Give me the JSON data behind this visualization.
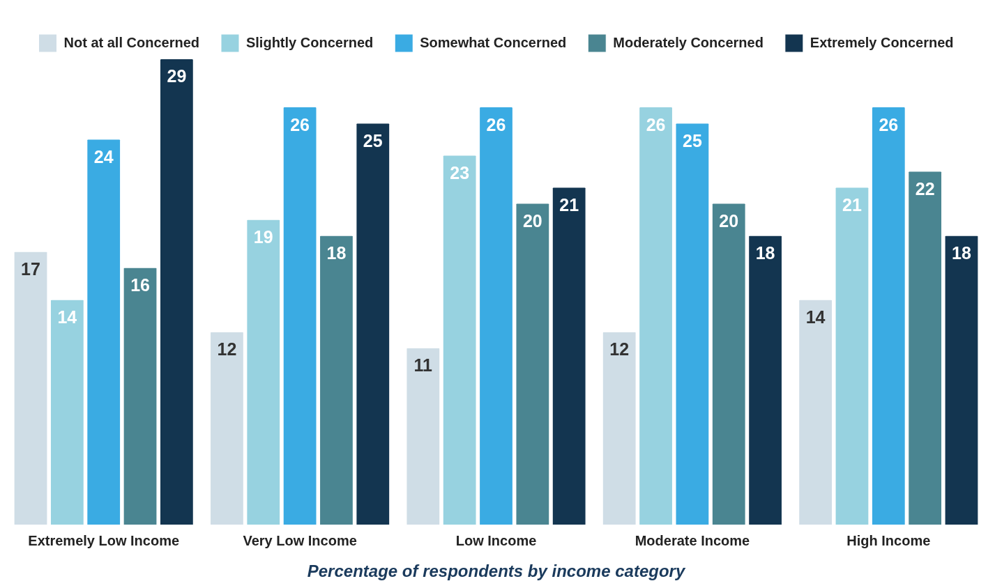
{
  "chart_data": {
    "type": "bar",
    "xlabel": "Percentage of respondents by income category",
    "categories": [
      "Extremely Low Income",
      "Very Low Income",
      "Low Income",
      "Moderate Income",
      "High Income"
    ],
    "series": [
      {
        "name": "Not at all Concerned",
        "color": "#cfdde6",
        "values": [
          17,
          12,
          11,
          12,
          14
        ]
      },
      {
        "name": "Slightly Concerned",
        "color": "#97d2e0",
        "values": [
          14,
          19,
          23,
          26,
          21
        ]
      },
      {
        "name": "Somewhat Concerned",
        "color": "#3aabe3",
        "values": [
          24,
          26,
          26,
          25,
          26
        ]
      },
      {
        "name": "Moderately Concerned",
        "color": "#4a8591",
        "values": [
          16,
          18,
          20,
          20,
          22
        ]
      },
      {
        "name": "Extremely Concerned",
        "color": "#133550",
        "values": [
          29,
          25,
          21,
          18,
          18
        ]
      }
    ],
    "data_labels": true,
    "grid": false,
    "legend": "top"
  }
}
